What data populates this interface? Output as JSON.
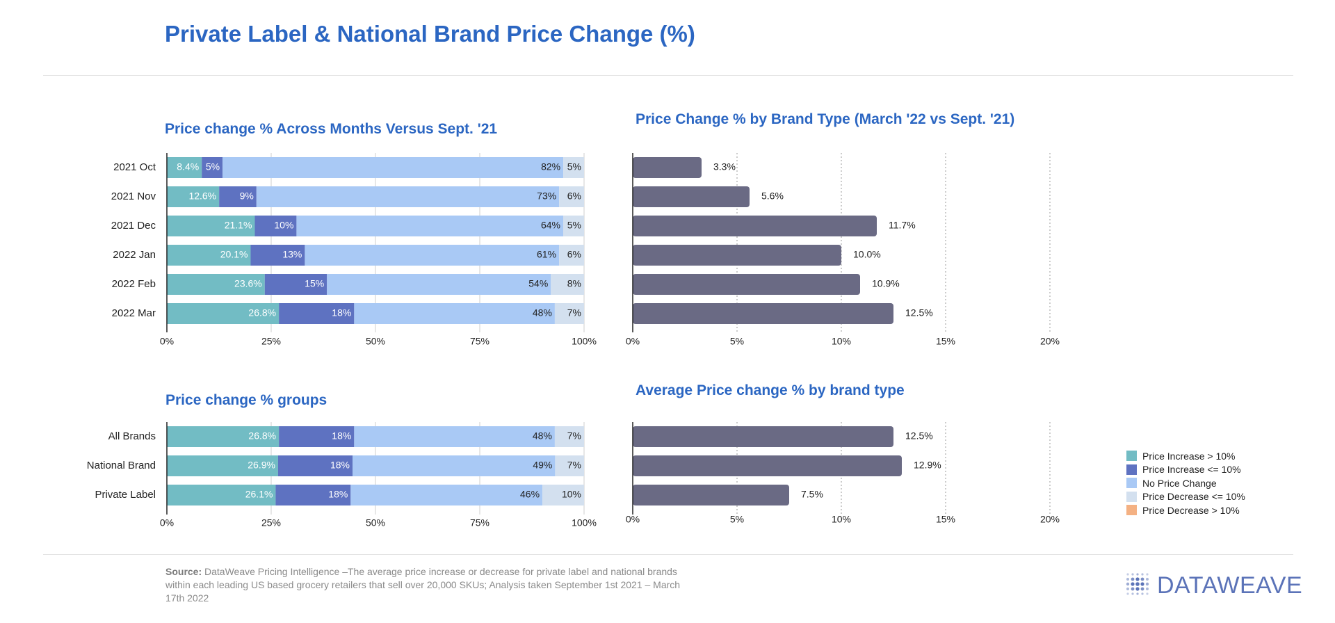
{
  "title": "Private Label & National Brand Price Change (%)",
  "colors": {
    "title": "#2b66c2",
    "increase_gt_10": "#72bcc4",
    "increase_le_10": "#5e72c1",
    "no_change": "#a9c9f5",
    "decrease_le_10": "#d3e0ef",
    "decrease_gt_10": "#f4b183",
    "brand_bar": "#6a6a84"
  },
  "legend": [
    {
      "label": "Price Increase > 10%",
      "color": "#72bcc4"
    },
    {
      "label": "Price Increase <= 10%",
      "color": "#5e72c1"
    },
    {
      "label": "No Price Change",
      "color": "#a9c9f5"
    },
    {
      "label": "Price Decrease <= 10%",
      "color": "#d3e0ef"
    },
    {
      "label": "Price Decrease > 10%",
      "color": "#f4b183"
    }
  ],
  "source": {
    "label": "Source:",
    "text": " DataWeave Pricing Intelligence –The average price increase or decrease for private label and national brands within each leading US based grocery retailers that sell over 20,000 SKUs; Analysis taken September 1st 2021 – March 17th 2022"
  },
  "logo": {
    "text": "DATAWEAVE"
  },
  "chart_data": [
    {
      "id": "months",
      "type": "bar",
      "orientation": "horizontal",
      "stacked": "percent",
      "title": "Price change % Across Months Versus Sept. '21",
      "categories": [
        "2021 Oct",
        "2021 Nov",
        "2021 Dec",
        "2022 Jan",
        "2022 Feb",
        "2022 Mar"
      ],
      "series": [
        {
          "name": "Price Increase > 10%",
          "values": [
            8.4,
            12.6,
            21.1,
            20.1,
            23.6,
            26.8
          ],
          "labels": [
            "8.4%",
            "12.6%",
            "21.1%",
            "20.1%",
            "23.6%",
            "26.8%"
          ]
        },
        {
          "name": "Price Increase <= 10%",
          "values": [
            5,
            9,
            10,
            13,
            15,
            18
          ],
          "labels": [
            "5%",
            "9%",
            "10%",
            "13%",
            "15%",
            "18%"
          ]
        },
        {
          "name": "No Price Change",
          "values": [
            82,
            73,
            64,
            61,
            54,
            48
          ],
          "labels": [
            "82%",
            "73%",
            "64%",
            "61%",
            "54%",
            "48%"
          ]
        },
        {
          "name": "Price Decrease <= 10%",
          "values": [
            5,
            6,
            5,
            6,
            8,
            7
          ],
          "labels": [
            "5%",
            "6%",
            "5%",
            "6%",
            "8%",
            "7%"
          ]
        }
      ],
      "xlim": [
        0,
        100
      ],
      "xticks": [
        "0%",
        "25%",
        "50%",
        "75%",
        "100%"
      ],
      "grid": true
    },
    {
      "id": "brand-type",
      "type": "bar",
      "orientation": "horizontal",
      "title": "Price Change % by Brand Type (March '22 vs Sept. '21)",
      "categories": [
        "2021 Oct",
        "2021 Nov",
        "2021 Dec",
        "2022 Jan",
        "2022 Feb",
        "2022 Mar"
      ],
      "values": [
        3.3,
        5.6,
        11.7,
        10.0,
        10.9,
        12.5
      ],
      "labels": [
        "3.3%",
        "5.6%",
        "11.7%",
        "10.0%",
        "10.9%",
        "12.5%"
      ],
      "xlim": [
        0,
        20
      ],
      "xticks": [
        "0%",
        "5%",
        "10%",
        "15%",
        "20%"
      ],
      "grid": true
    },
    {
      "id": "groups",
      "type": "bar",
      "orientation": "horizontal",
      "stacked": "percent",
      "title": "Price change % groups",
      "categories": [
        "All Brands",
        "National Brand",
        "Private Label"
      ],
      "series": [
        {
          "name": "Price Increase > 10%",
          "values": [
            26.8,
            26.9,
            26.1
          ],
          "labels": [
            "26.8%",
            "26.9%",
            "26.1%"
          ]
        },
        {
          "name": "Price Increase <= 10%",
          "values": [
            18,
            18,
            18
          ],
          "labels": [
            "18%",
            "18%",
            "18%"
          ]
        },
        {
          "name": "No Price Change",
          "values": [
            48,
            49,
            46
          ],
          "labels": [
            "48%",
            "49%",
            "46%"
          ]
        },
        {
          "name": "Price Decrease <= 10%",
          "values": [
            7,
            7,
            10
          ],
          "labels": [
            "7%",
            "7%",
            "10%"
          ]
        }
      ],
      "xlim": [
        0,
        100
      ],
      "xticks": [
        "0%",
        "25%",
        "50%",
        "75%",
        "100%"
      ],
      "grid": true
    },
    {
      "id": "avg-brand-type",
      "type": "bar",
      "orientation": "horizontal",
      "title": "Average Price change % by brand type",
      "categories": [
        "All Brands",
        "National Brand",
        "Private Label"
      ],
      "values": [
        12.5,
        12.9,
        7.5
      ],
      "labels": [
        "12.5%",
        "12.9%",
        "7.5%"
      ],
      "xlim": [
        0,
        20
      ],
      "xticks": [
        "0%",
        "5%",
        "10%",
        "15%",
        "20%"
      ],
      "grid": true
    }
  ]
}
